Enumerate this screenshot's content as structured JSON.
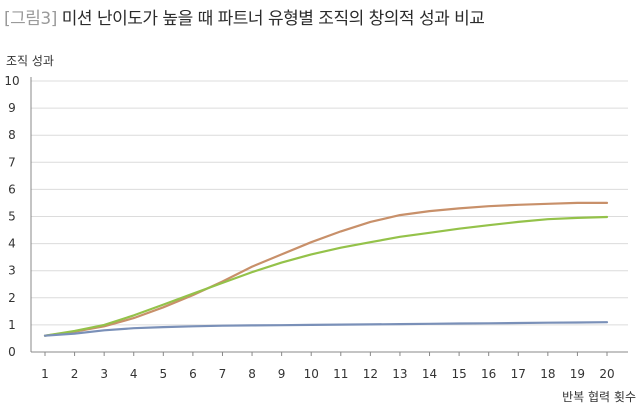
{
  "figure": {
    "label": "[그림3]",
    "title": "미션 난이도가 높을 때 파트너 유형별 조직의 창의적 성과 비교"
  },
  "chart_data": {
    "type": "line",
    "ylabel": "조직 성과",
    "xlabel": "반복 협력 횟수",
    "ylim": [
      0,
      10
    ],
    "xlim": [
      1,
      20
    ],
    "grid": true,
    "x": [
      1,
      2,
      3,
      4,
      5,
      6,
      7,
      8,
      9,
      10,
      11,
      12,
      13,
      14,
      15,
      16,
      17,
      18,
      19,
      20
    ],
    "yticks": [
      0,
      1,
      2,
      3,
      4,
      5,
      6,
      7,
      8,
      9,
      10
    ],
    "series": [
      {
        "color": "#c8906a",
        "values": [
          0.6,
          0.75,
          0.95,
          1.25,
          1.65,
          2.1,
          2.6,
          3.15,
          3.6,
          4.05,
          4.45,
          4.8,
          5.05,
          5.2,
          5.3,
          5.38,
          5.43,
          5.47,
          5.5,
          5.5
        ]
      },
      {
        "color": "#94c24a",
        "values": [
          0.6,
          0.78,
          1.0,
          1.35,
          1.75,
          2.15,
          2.55,
          2.95,
          3.3,
          3.6,
          3.85,
          4.05,
          4.25,
          4.4,
          4.55,
          4.68,
          4.8,
          4.9,
          4.95,
          4.98
        ]
      },
      {
        "color": "#7a90b8",
        "values": [
          0.6,
          0.68,
          0.8,
          0.88,
          0.92,
          0.95,
          0.97,
          0.98,
          0.99,
          1.0,
          1.01,
          1.02,
          1.03,
          1.04,
          1.05,
          1.06,
          1.07,
          1.08,
          1.09,
          1.1
        ]
      }
    ]
  }
}
